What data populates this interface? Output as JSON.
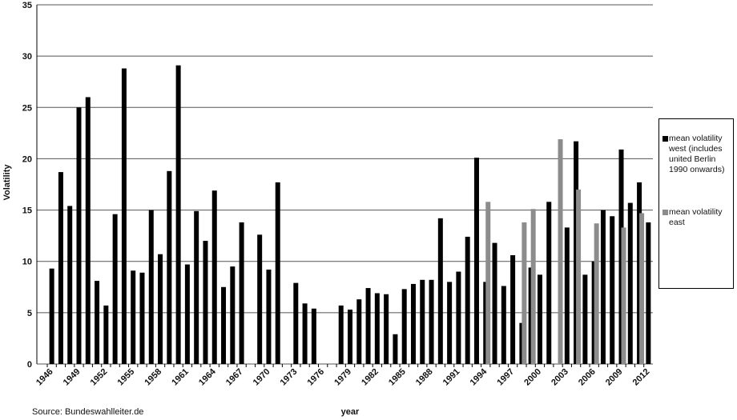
{
  "chart_data": {
    "type": "bar",
    "y_label": "Volatility",
    "x_label": "year",
    "source": "Source: Bundeswahlleiter.de",
    "categories": [
      "1946",
      null,
      null,
      "1949",
      null,
      null,
      "1952",
      null,
      null,
      "1955",
      null,
      null,
      "1958",
      null,
      null,
      "1961",
      null,
      null,
      "1964",
      null,
      null,
      "1967",
      null,
      null,
      "1970",
      null,
      null,
      "1973",
      null,
      null,
      "1976",
      null,
      null,
      "1979",
      null,
      null,
      "1982",
      null,
      null,
      "1985",
      null,
      null,
      "1988",
      null,
      null,
      "1991",
      null,
      null,
      "1994",
      null,
      null,
      "1997",
      null,
      null,
      "2000",
      null,
      null,
      "2003",
      null,
      null,
      "2006",
      null,
      null,
      "2009",
      null,
      null,
      "2012"
    ],
    "series": [
      {
        "name": "mean volatility west (includes united Berlin 1990 onwards)",
        "color": "#000000",
        "values": [
          9.3,
          18.7,
          15.4,
          25.0,
          26.0,
          8.1,
          5.7,
          14.6,
          28.8,
          9.1,
          8.9,
          15.0,
          10.7,
          18.8,
          29.1,
          9.7,
          14.9,
          12.0,
          16.9,
          7.5,
          9.5,
          13.8,
          null,
          12.6,
          9.2,
          17.7,
          null,
          7.9,
          5.9,
          5.4,
          null,
          null,
          5.7,
          5.3,
          6.3,
          7.4,
          6.9,
          6.8,
          2.9,
          7.3,
          7.8,
          8.2,
          8.2,
          14.2,
          8.0,
          9.0,
          12.4,
          20.1,
          8.0,
          11.8,
          7.6,
          10.6,
          4.0,
          9.4,
          8.7,
          15.8,
          null,
          13.3,
          21.7,
          8.7,
          10.0,
          15.0,
          14.4,
          20.9,
          15.7,
          17.7,
          13.8
        ]
      },
      {
        "name": "mean volatility east",
        "color": "#8c8c8c",
        "values": [
          null,
          null,
          null,
          null,
          null,
          null,
          null,
          null,
          null,
          null,
          null,
          null,
          null,
          null,
          null,
          null,
          null,
          null,
          null,
          null,
          null,
          null,
          null,
          null,
          null,
          null,
          null,
          null,
          null,
          null,
          null,
          null,
          null,
          null,
          null,
          null,
          null,
          null,
          null,
          null,
          null,
          null,
          null,
          null,
          null,
          null,
          null,
          null,
          15.8,
          null,
          null,
          null,
          13.8,
          15.1,
          null,
          null,
          21.9,
          null,
          17.0,
          null,
          13.7,
          null,
          null,
          13.3,
          null,
          14.7,
          null
        ]
      }
    ],
    "ylim": [
      0,
      35
    ],
    "yticks": [
      0,
      5,
      10,
      15,
      20,
      25,
      30,
      35
    ],
    "grid": true
  }
}
